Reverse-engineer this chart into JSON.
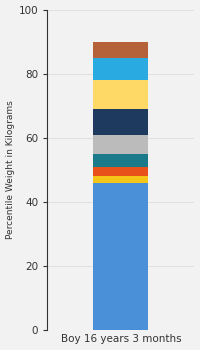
{
  "category": "Boy 16 years 3 months",
  "segments": [
    {
      "value": 46,
      "color": "#4A90D9"
    },
    {
      "value": 2,
      "color": "#F5C518"
    },
    {
      "value": 3,
      "color": "#E8521A"
    },
    {
      "value": 4,
      "color": "#1A7A8A"
    },
    {
      "value": 6,
      "color": "#BBBBBB"
    },
    {
      "value": 8,
      "color": "#1F3A5F"
    },
    {
      "value": 9,
      "color": "#FFD966"
    },
    {
      "value": 7,
      "color": "#29ABE2"
    },
    {
      "value": 5,
      "color": "#B5613A"
    }
  ],
  "ylim": [
    0,
    100
  ],
  "yticks": [
    0,
    20,
    40,
    60,
    80,
    100
  ],
  "ylabel": "Percentile Weight in Kilograms",
  "bg_color": "#F2F2F2",
  "title": ""
}
